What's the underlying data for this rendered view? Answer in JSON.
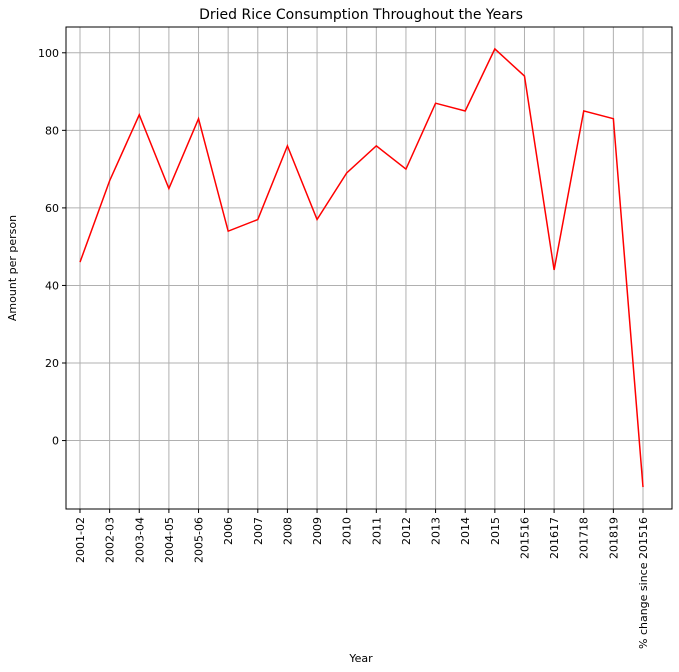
{
  "chart_data": {
    "type": "line",
    "title": "Dried Rice Consumption Throughout the Years",
    "xlabel": "Year",
    "ylabel": "Amount per person",
    "categories": [
      "2001-02",
      "2002-03",
      "2003-04",
      "2004-05",
      "2005-06",
      "2006",
      "2007",
      "2008",
      "2009",
      "2010",
      "2011",
      "2012",
      "2013",
      "2014",
      "2015",
      "201516",
      "201617",
      "201718",
      "201819",
      "% change since 201516"
    ],
    "series": [
      {
        "values": [
          46,
          67,
          84,
          65,
          83,
          54,
          57,
          76,
          57,
          69,
          76,
          70,
          87,
          85,
          101,
          94,
          44,
          85,
          83,
          -12
        ]
      }
    ],
    "yticks": [
      0,
      20,
      40,
      60,
      80,
      100
    ],
    "ylim": [
      -17.65,
      106.65
    ],
    "grid": true,
    "color": "#ff0000"
  }
}
